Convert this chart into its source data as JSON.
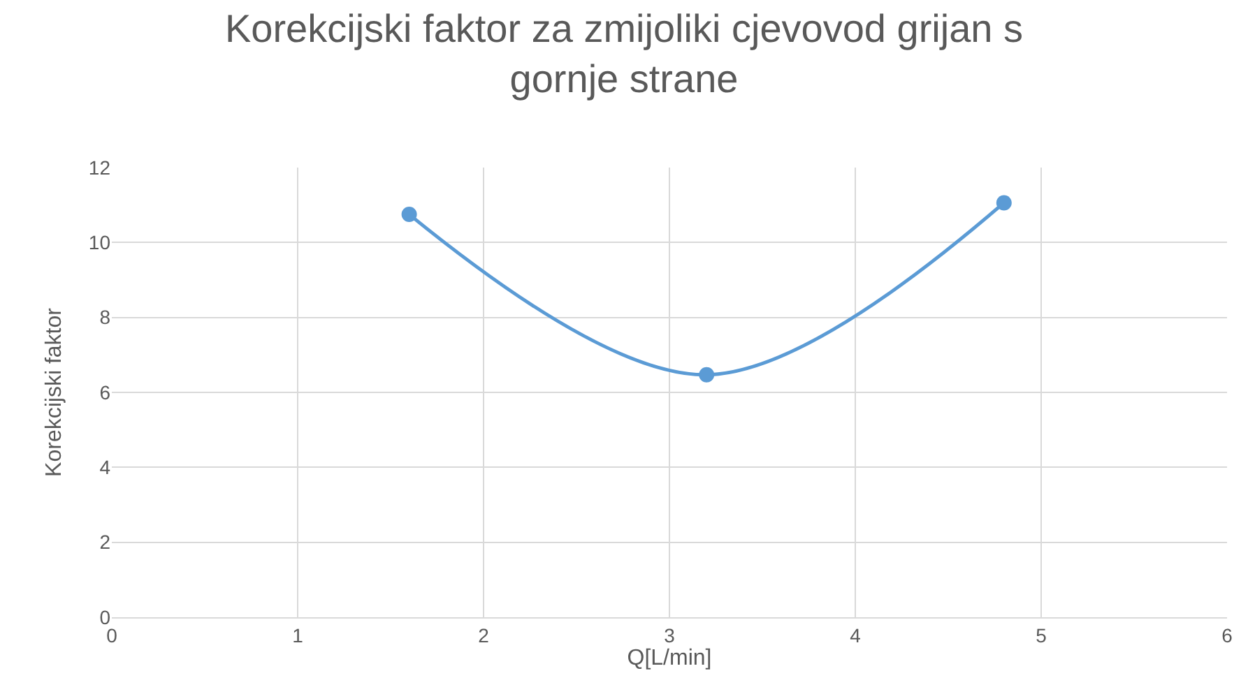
{
  "chart_data": {
    "type": "line",
    "title": "Korekcijski faktor za zmijoliki cjevovod grijan s gornje strane",
    "xlabel": "Q[L/min]",
    "ylabel": "Korekcijski faktor",
    "x": [
      1.6,
      3.2,
      4.8
    ],
    "series": [
      {
        "color": "#5b9bd5",
        "values": [
          10.75,
          6.47,
          11.06
        ]
      }
    ],
    "xlim": [
      0,
      6
    ],
    "xticks": [
      0,
      1,
      2,
      3,
      4,
      5,
      6
    ],
    "ylim": [
      0,
      12
    ],
    "yticks": [
      0,
      2,
      4,
      6,
      8,
      10,
      12
    ],
    "grid": true,
    "marker": "circle",
    "line_style": "solid",
    "legend": false
  }
}
